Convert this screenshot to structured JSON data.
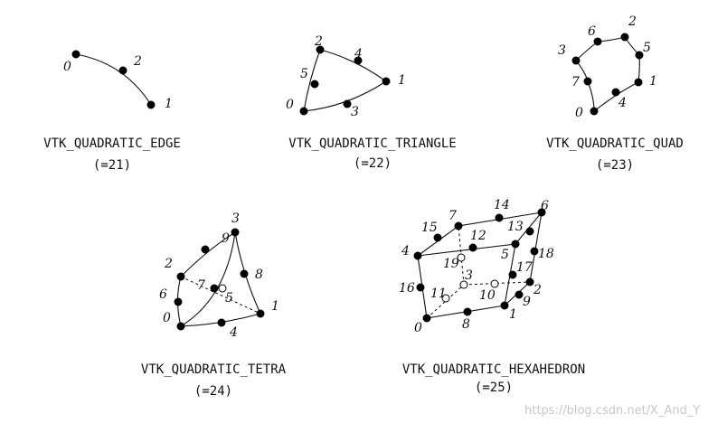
{
  "diagrams": [
    {
      "id": "edge",
      "name": "VTK_QUADRATIC_EDGE",
      "code": "(=21)",
      "points": [
        {
          "n": "0",
          "filled": true
        },
        {
          "n": "2",
          "filled": true
        },
        {
          "n": "1",
          "filled": true
        }
      ]
    },
    {
      "id": "triangle",
      "name": "VTK_QUADRATIC_TRIANGLE",
      "code": "(=22)",
      "points": [
        {
          "n": "0",
          "filled": true
        },
        {
          "n": "1",
          "filled": true
        },
        {
          "n": "2",
          "filled": true
        },
        {
          "n": "3",
          "filled": true
        },
        {
          "n": "4",
          "filled": true
        },
        {
          "n": "5",
          "filled": true
        }
      ]
    },
    {
      "id": "quad",
      "name": "VTK_QUADRATIC_QUAD",
      "code": "(=23)",
      "points": [
        {
          "n": "0",
          "filled": true
        },
        {
          "n": "1",
          "filled": true
        },
        {
          "n": "2",
          "filled": true
        },
        {
          "n": "3",
          "filled": true
        },
        {
          "n": "4",
          "filled": true
        },
        {
          "n": "5",
          "filled": true
        },
        {
          "n": "6",
          "filled": true
        },
        {
          "n": "7",
          "filled": true
        }
      ]
    },
    {
      "id": "tetra",
      "name": "VTK_QUADRATIC_TETRA",
      "code": "(=24)",
      "points": [
        {
          "n": "0",
          "filled": true
        },
        {
          "n": "1",
          "filled": true
        },
        {
          "n": "2",
          "filled": true
        },
        {
          "n": "3",
          "filled": true
        },
        {
          "n": "4",
          "filled": true
        },
        {
          "n": "5",
          "filled": false
        },
        {
          "n": "6",
          "filled": true
        },
        {
          "n": "7",
          "filled": true
        },
        {
          "n": "8",
          "filled": true
        },
        {
          "n": "9",
          "filled": true
        }
      ]
    },
    {
      "id": "hexa",
      "name": "VTK_QUADRATIC_HEXAHEDRON",
      "code": "(=25)",
      "points": [
        {
          "n": "0",
          "filled": true
        },
        {
          "n": "1",
          "filled": true
        },
        {
          "n": "2",
          "filled": true
        },
        {
          "n": "3",
          "filled": false
        },
        {
          "n": "4",
          "filled": true
        },
        {
          "n": "5",
          "filled": true
        },
        {
          "n": "6",
          "filled": true
        },
        {
          "n": "7",
          "filled": true
        },
        {
          "n": "8",
          "filled": true
        },
        {
          "n": "9",
          "filled": true
        },
        {
          "n": "10",
          "filled": false
        },
        {
          "n": "11",
          "filled": false
        },
        {
          "n": "12",
          "filled": true
        },
        {
          "n": "13",
          "filled": true
        },
        {
          "n": "14",
          "filled": true
        },
        {
          "n": "15",
          "filled": true
        },
        {
          "n": "16",
          "filled": true
        },
        {
          "n": "17",
          "filled": true
        },
        {
          "n": "18",
          "filled": true
        },
        {
          "n": "19",
          "filled": false
        }
      ]
    }
  ],
  "watermark": "https://blog.csdn.net/X_And_Y"
}
